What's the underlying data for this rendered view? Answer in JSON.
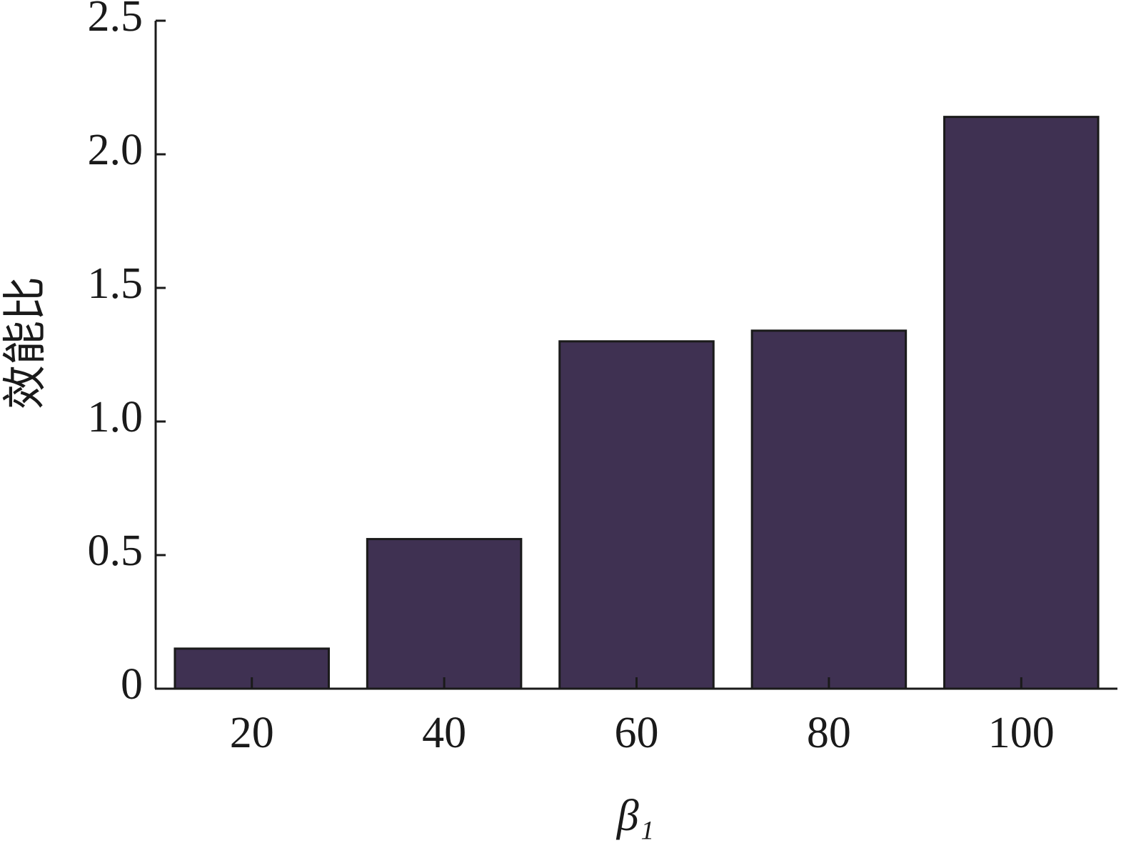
{
  "chart_data": {
    "type": "bar",
    "y_label": "效能比",
    "x_label": "β₁",
    "categories": [
      "20",
      "40",
      "60",
      "80",
      "100"
    ],
    "values": [
      0.15,
      0.56,
      1.3,
      1.34,
      2.14
    ],
    "color": "#3f3152",
    "ylim": [
      0,
      2.5
    ],
    "yticks": [
      0,
      0.5,
      {
        "value": 1,
        "label": "1.0"
      },
      1.5,
      {
        "value": 2,
        "label": "2.0"
      },
      2.5
    ],
    "grid": false
  }
}
